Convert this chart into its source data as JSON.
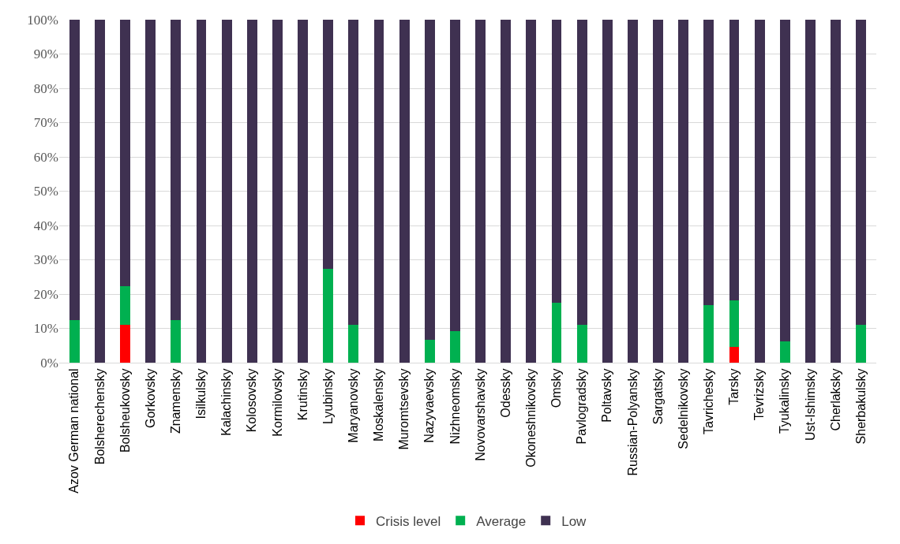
{
  "chart_data": {
    "type": "bar",
    "stacked": true,
    "categories": [
      "Azov German national",
      "Bolsherechensky",
      "Bolsheukovsky",
      "Gorkovsky",
      "Znamensky",
      "Isilkulsky",
      "Kalachinsky",
      "Kolosovsky",
      "Kormilovsky",
      "Krutinsky",
      "Lyubinsky",
      "Maryanovsky",
      "Moskalensky",
      "Muromtsevsky",
      "Nazyvaevsky",
      "Nizhneomsky",
      "Novovarshavsky",
      "Odessky",
      "Okoneshnikovsky",
      "Omsky",
      "Pavlogradsky",
      "Poltavsky",
      "Russian-Polyansky",
      "Sargatsky",
      "Sedelnikovsky",
      "Tavrichesky",
      "Tarsky",
      "Tevrizsky",
      "Tyukalinsky",
      "Ust-Ishimsky",
      "Cherlaksky",
      "Sherbakulsky"
    ],
    "series": [
      {
        "name": "Crisis level",
        "color": "#ff0000",
        "values": [
          0,
          0,
          11.1,
          0,
          0,
          0,
          0,
          0,
          0,
          0,
          0,
          0,
          0,
          0,
          0,
          0,
          0,
          0,
          0,
          0,
          0,
          0,
          0,
          0,
          0,
          0,
          4.5,
          0,
          0,
          0,
          0,
          0
        ]
      },
      {
        "name": "Average",
        "color": "#00b050",
        "values": [
          12.5,
          0,
          11.1,
          0,
          12.5,
          0,
          0,
          0,
          0,
          0,
          27.3,
          11.1,
          0,
          0,
          6.7,
          9.1,
          0,
          0,
          0,
          17.4,
          11.1,
          0,
          0,
          0,
          0,
          16.7,
          13.6,
          0,
          6.3,
          0,
          0,
          11.1
        ]
      },
      {
        "name": "Low",
        "color": "#3f3151",
        "values": [
          87.5,
          100,
          77.8,
          100,
          87.5,
          100,
          100,
          100,
          100,
          100,
          72.7,
          88.9,
          100,
          100,
          93.3,
          90.9,
          100,
          100,
          100,
          82.6,
          88.9,
          100,
          100,
          100,
          100,
          83.3,
          81.9,
          100,
          93.7,
          100,
          100,
          88.9
        ]
      }
    ],
    "ylim": [
      0,
      100
    ],
    "yticks": [
      {
        "value": 0,
        "label": "0%"
      },
      {
        "value": 10,
        "label": "10%"
      },
      {
        "value": 20,
        "label": "20%"
      },
      {
        "value": 30,
        "label": "30%"
      },
      {
        "value": 40,
        "label": "40%"
      },
      {
        "value": 50,
        "label": "50%"
      },
      {
        "value": 60,
        "label": "60%"
      },
      {
        "value": 70,
        "label": "70%"
      },
      {
        "value": 80,
        "label": "80%"
      },
      {
        "value": 90,
        "label": "90%"
      },
      {
        "value": 100,
        "label": "100%"
      }
    ],
    "grid": "y",
    "legend": "bottom"
  }
}
